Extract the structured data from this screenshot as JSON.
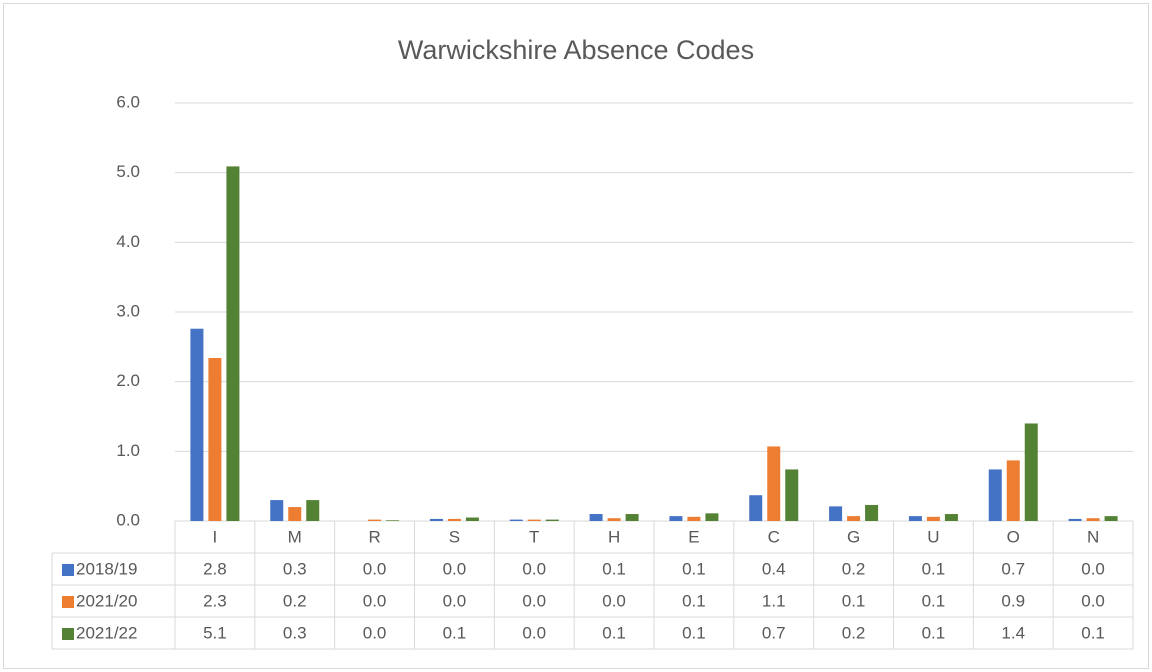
{
  "chart_data": {
    "type": "bar",
    "title": "Warwickshire Absence Codes",
    "categories": [
      "I",
      "M",
      "R",
      "S",
      "T",
      "H",
      "E",
      "C",
      "G",
      "U",
      "O",
      "N"
    ],
    "series": [
      {
        "name": "2018/19",
        "color": "#4472c4",
        "values": [
          2.76,
          0.3,
          0.0,
          0.03,
          0.02,
          0.1,
          0.07,
          0.37,
          0.21,
          0.07,
          0.74,
          0.03
        ],
        "value_labels": [
          "2.8",
          "0.3",
          "0.0",
          "0.0",
          "0.0",
          "0.1",
          "0.1",
          "0.4",
          "0.2",
          "0.1",
          "0.7",
          "0.0"
        ]
      },
      {
        "name": "2021/20",
        "color": "#ed7d31",
        "values": [
          2.34,
          0.2,
          0.02,
          0.03,
          0.02,
          0.04,
          0.06,
          1.07,
          0.07,
          0.06,
          0.87,
          0.04
        ],
        "value_labels": [
          "2.3",
          "0.2",
          "0.0",
          "0.0",
          "0.0",
          "0.0",
          "0.1",
          "1.1",
          "0.1",
          "0.1",
          "0.9",
          "0.0"
        ]
      },
      {
        "name": "2021/22",
        "color": "#548235",
        "values": [
          5.09,
          0.3,
          0.01,
          0.05,
          0.02,
          0.1,
          0.11,
          0.74,
          0.23,
          0.1,
          1.4,
          0.07
        ],
        "value_labels": [
          "5.1",
          "0.3",
          "0.0",
          "0.1",
          "0.0",
          "0.1",
          "0.1",
          "0.7",
          "0.2",
          "0.1",
          "1.4",
          "0.1"
        ]
      }
    ],
    "ylim": [
      0,
      6
    ],
    "yticks": [
      {
        "value": 0,
        "label": "0.0"
      },
      {
        "value": 1,
        "label": "1.0"
      },
      {
        "value": 2,
        "label": "2.0"
      },
      {
        "value": 3,
        "label": "3.0"
      },
      {
        "value": 4,
        "label": "4.0"
      },
      {
        "value": 5,
        "label": "5.0"
      },
      {
        "value": 6,
        "label": "6.0"
      }
    ],
    "grid": true
  }
}
